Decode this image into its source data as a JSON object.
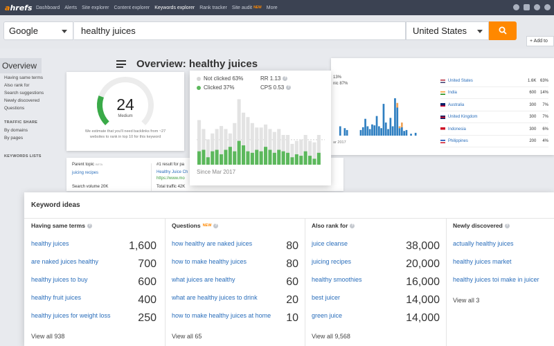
{
  "brand": {
    "logo_prefix": "a",
    "logo_rest": "hrefs",
    "accent": "#ff8800",
    "link": "#2a6ebb"
  },
  "topnav": {
    "links": [
      {
        "label": "Dashboard"
      },
      {
        "label": "Alerts"
      },
      {
        "label": "Site explorer"
      },
      {
        "label": "Content explorer"
      },
      {
        "label": "Keywords explorer",
        "active": true
      },
      {
        "label": "Rank tracker"
      },
      {
        "label": "Site audit",
        "badge": "NEW"
      },
      {
        "label": "More"
      }
    ],
    "icons": [
      "help-icon",
      "bell-icon",
      "settings-icon",
      "user-icon"
    ]
  },
  "search": {
    "engine": "Google",
    "keyword": "healthy juices",
    "country": "United States",
    "button_icon": "search-icon"
  },
  "add_to_label": "+ Add to",
  "sidebar": {
    "overview_label": "Overview",
    "items": [
      "Having same terms",
      "Also rank for",
      "Search suggestions",
      "Newly discovered",
      "Questions"
    ],
    "traffic_share_heading": "TRAFFIC SHARE",
    "traffic_items": [
      "By domains",
      "By pages"
    ],
    "keywords_lists_heading": "KEYWORDS LISTS"
  },
  "overview_title": "Overview: healthy juices",
  "difficulty": {
    "score": "24",
    "label": "Medium",
    "note": "We estimate that you'll need backlinks from ~27 websites to rank in top 10 for this keyword",
    "level": 0.24,
    "color": "#3aaa48"
  },
  "clicks": {
    "not_clicked": "Not clicked 63%",
    "clicked": "Clicked 37%",
    "rr": "RR 1.13",
    "cps": "CPS 0.53",
    "since": "Since Mar 2017",
    "clicked_color": "#5cb85c",
    "not_clicked_color": "#e3e3e3",
    "bars_clicked": [
      9,
      10,
      5,
      9,
      10,
      7,
      10,
      12,
      9,
      16,
      13,
      9,
      8,
      10,
      9,
      12,
      10,
      8,
      10,
      9,
      8,
      5,
      7,
      6,
      9,
      6,
      4,
      8
    ],
    "bars_total": [
      30,
      24,
      17,
      21,
      24,
      26,
      24,
      21,
      28,
      44,
      35,
      32,
      28,
      25,
      25,
      27,
      24,
      22,
      24,
      20,
      20,
      14,
      16,
      17,
      20,
      16,
      15,
      20
    ]
  },
  "volume": {
    "pct_text": "13%",
    "label_text": "nic 87%",
    "date_text": "ar 2017",
    "bars_blue": [
      0,
      0,
      0,
      10,
      0,
      8,
      6,
      0,
      0,
      0,
      0,
      0,
      6,
      9,
      18,
      10,
      7,
      12,
      11,
      21,
      10,
      8,
      34,
      14,
      7,
      19,
      10,
      40,
      30,
      8,
      9,
      5,
      6,
      0,
      2,
      0,
      3
    ],
    "bars_orange": [
      0,
      0,
      0,
      0,
      0,
      0,
      0,
      0,
      0,
      0,
      0,
      0,
      0,
      0,
      0,
      0,
      0,
      0,
      0,
      0,
      0,
      0,
      0,
      0,
      0,
      0,
      0,
      0,
      5,
      2,
      5,
      0,
      0,
      0,
      0,
      0,
      0
    ],
    "blue_color": "#2f7fc1",
    "orange_color": "#f0a358",
    "countries": [
      {
        "name": "United States",
        "volume": "1.6K",
        "pct": "63%",
        "flag": "us"
      },
      {
        "name": "India",
        "volume": "600",
        "pct": "14%",
        "flag": "in"
      },
      {
        "name": "Australia",
        "volume": "300",
        "pct": "7%",
        "flag": "au"
      },
      {
        "name": "United Kingdom",
        "volume": "300",
        "pct": "7%",
        "flag": "gb"
      },
      {
        "name": "Indonesia",
        "volume": "300",
        "pct": "6%",
        "flag": "id"
      },
      {
        "name": "Philippines",
        "volume": "200",
        "pct": "4%",
        "flag": "ph"
      }
    ]
  },
  "parent": {
    "label": "Parent topic",
    "beta": "BETA",
    "topic": "juicing recipes",
    "search_volume": "Search volume 20K",
    "result_label": "#1 result for pa",
    "result_title": "Healthy Juice Ch",
    "result_url": "https://www.mo",
    "total_traffic": "Total traffic 42K"
  },
  "keyword_ideas": {
    "title": "Keyword ideas",
    "columns": [
      {
        "title": "Having same terms",
        "badge": "",
        "rows": [
          {
            "kw": "healthy juices",
            "vol": "1,600"
          },
          {
            "kw": "are naked juices healthy",
            "vol": "700"
          },
          {
            "kw": "healthy juices to buy",
            "vol": "600"
          },
          {
            "kw": "healthy fruit juices",
            "vol": "400"
          },
          {
            "kw": "healthy juices for weight loss",
            "vol": "250"
          }
        ],
        "view_all": "View all 938"
      },
      {
        "title": "Questions",
        "badge": "NEW",
        "rows": [
          {
            "kw": "how healthy are naked juices",
            "vol": "80"
          },
          {
            "kw": "how to make healthy juices",
            "vol": "80"
          },
          {
            "kw": "what juices are healthy",
            "vol": "60"
          },
          {
            "kw": "what are healthy juices to drink",
            "vol": "20"
          },
          {
            "kw": "how to make healthy juices at home",
            "vol": "10"
          }
        ],
        "view_all": "View all 65"
      },
      {
        "title": "Also rank for",
        "badge": "",
        "rows": [
          {
            "kw": "juice cleanse",
            "vol": "38,000"
          },
          {
            "kw": "juicing recipes",
            "vol": "20,000"
          },
          {
            "kw": "healthy smoothies",
            "vol": "16,000"
          },
          {
            "kw": "best juicer",
            "vol": "14,000"
          },
          {
            "kw": "green juice",
            "vol": "14,000"
          }
        ],
        "view_all": "View all 9,568"
      },
      {
        "title": "Newly discovered",
        "badge": "",
        "rows": [
          {
            "kw": "actually healthy juices",
            "vol": ""
          },
          {
            "kw": "healthy juices market",
            "vol": ""
          },
          {
            "kw": "healthy juices toi make in juicer",
            "vol": ""
          }
        ],
        "view_all": "View all 3"
      }
    ]
  }
}
